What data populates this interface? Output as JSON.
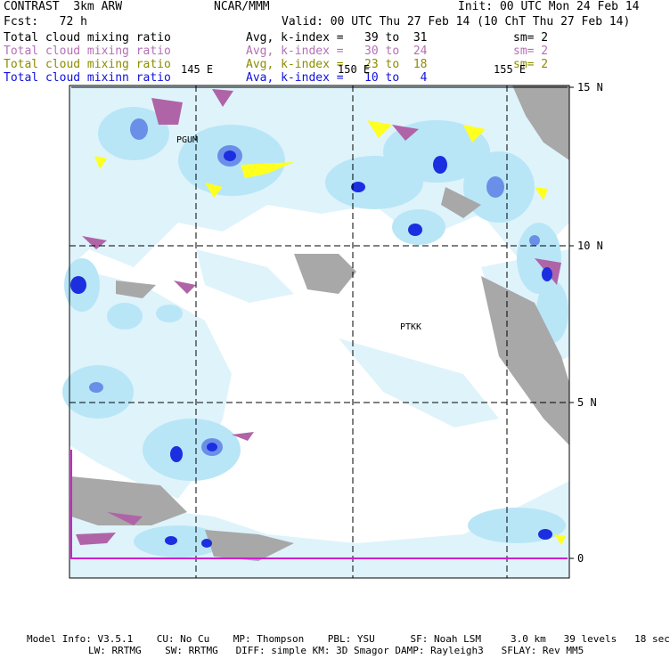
{
  "header": {
    "model": "CONTRAST  3km ARW",
    "center": "NCAR/MMM",
    "init": "Init: 00 UTC Mon 24 Feb 14",
    "fcst": "Fcst:   72 h",
    "valid": "Valid: 00 UTC Thu 27 Feb 14 (10 ChT Thu 27 Feb 14)"
  },
  "legend": [
    {
      "field": "Total cloud mixing ratio",
      "range": "Avg, k-index =   39 to  31",
      "sm": "sm= 2",
      "color": "#000000"
    },
    {
      "field": "Total cloud mixing ratio",
      "range": "Avg, k-index =   30 to  24",
      "sm": "sm= 2",
      "color": "#b470b4"
    },
    {
      "field": "Total cloud mixing ratio",
      "range": "Avg, k-index =   23 to  18",
      "sm": "sm= 2",
      "color": "#8c8c00"
    },
    {
      "field": "Total cloud mixinn ratio",
      "range": "Ava, k-index =   10 to   4",
      "sm": "",
      "color": "#1010e0"
    }
  ],
  "axes": {
    "lon_labels": [
      "145 E",
      "150 E",
      "155 E"
    ],
    "lat_labels": [
      "15 N",
      "10 N",
      "5 N",
      "0"
    ]
  },
  "stations": [
    "PGUM",
    "PTKK"
  ],
  "footer": {
    "line1": "Model Info: V3.5.1    CU: No Cu    MP: Thompson    PBL: YSU      SF: Noah LSM     3.0 km   39 levels   18 sec",
    "line2": "LW: RRTMG    SW: RRTMG   DIFF: simple KM: 3D Smagor DAMP: Rayleigh3   SFLAY: Rev MM5"
  },
  "colors": {
    "cloud_light": "#dff3fb",
    "cloud_mid": "#b8e6f7",
    "cloud_dark": "#6a8fe8",
    "cloud_core": "#1c2ee0",
    "upper_magenta": "#b064a8",
    "mid_yellow": "#ffff20",
    "land_gray": "#a8a8a8"
  }
}
